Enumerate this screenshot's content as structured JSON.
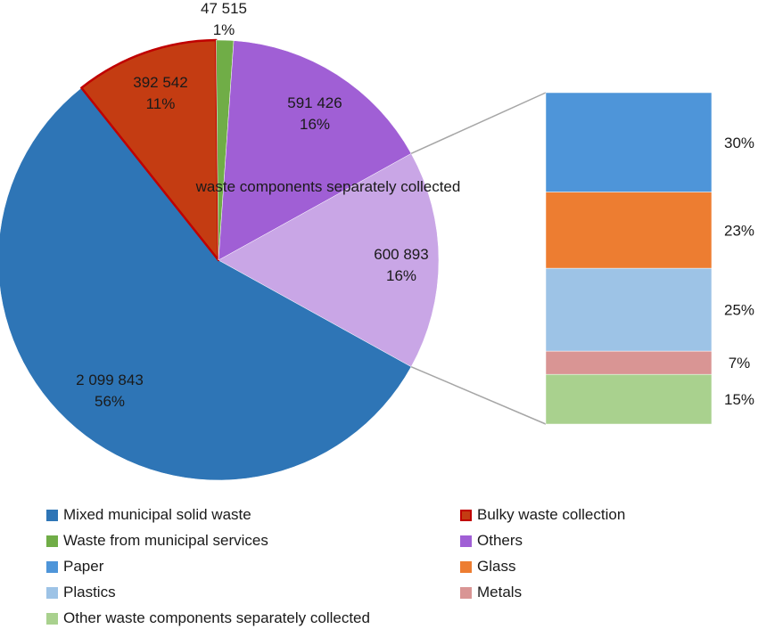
{
  "chart_data": [
    {
      "type": "pie",
      "title": "",
      "slices": [
        {
          "key": "mixed",
          "label": "Mixed municipal solid waste",
          "value": 2099843,
          "value_text": "2 099 843",
          "percent_text": "56%",
          "color": "#2E75B6"
        },
        {
          "key": "bulky",
          "label": "Bulky waste collection",
          "value": 392542,
          "value_text": "392 542",
          "percent_text": "11%",
          "color": "#C43C12",
          "stroke": "#C00000"
        },
        {
          "key": "municipal_services",
          "label": "Waste from municipal services",
          "value": 47515,
          "value_text": "47 515",
          "percent_text": "1%",
          "color": "#70AD47"
        },
        {
          "key": "others",
          "label": "Others",
          "value": 591426,
          "value_text": "591 426",
          "percent_text": "16%",
          "color": "#A05FD5"
        },
        {
          "key": "separately_collected",
          "label": "waste  components separately collected",
          "value": 600893,
          "value_text": "600 893",
          "percent_text": "16%",
          "color": "#C9A6E6"
        }
      ]
    },
    {
      "type": "bar",
      "stacked": true,
      "breakdown_of": "separately_collected",
      "series": [
        {
          "key": "paper",
          "name": "Paper",
          "value": 30,
          "percent_text": "30%",
          "color": "#4E95D9"
        },
        {
          "key": "glass",
          "name": "Glass",
          "value": 23,
          "percent_text": "23%",
          "color": "#ED7D31"
        },
        {
          "key": "plastics",
          "name": "Plastics",
          "value": 25,
          "percent_text": "25%",
          "color": "#9DC3E6"
        },
        {
          "key": "metals",
          "name": "Metals",
          "value": 7,
          "percent_text": "7%",
          "color": "#D99594"
        },
        {
          "key": "other_components",
          "name": "Other waste components separately collected",
          "value": 15,
          "percent_text": "15%",
          "color": "#A9D18E"
        }
      ]
    }
  ],
  "legend": {
    "items": [
      {
        "label": "Mixed municipal solid waste",
        "color": "#2E75B6"
      },
      {
        "label": "Bulky waste collection",
        "color": "#C43C12",
        "border": "#C00000"
      },
      {
        "label": "Waste from municipal services",
        "color": "#70AD47"
      },
      {
        "label": "Others",
        "color": "#A05FD5"
      },
      {
        "label": "Paper",
        "color": "#4E95D9"
      },
      {
        "label": "Glass",
        "color": "#ED7D31"
      },
      {
        "label": "Plastics",
        "color": "#9DC3E6"
      },
      {
        "label": "Metals",
        "color": "#D99594"
      },
      {
        "label": "Other waste components separately collected",
        "color": "#A9D18E"
      }
    ]
  }
}
